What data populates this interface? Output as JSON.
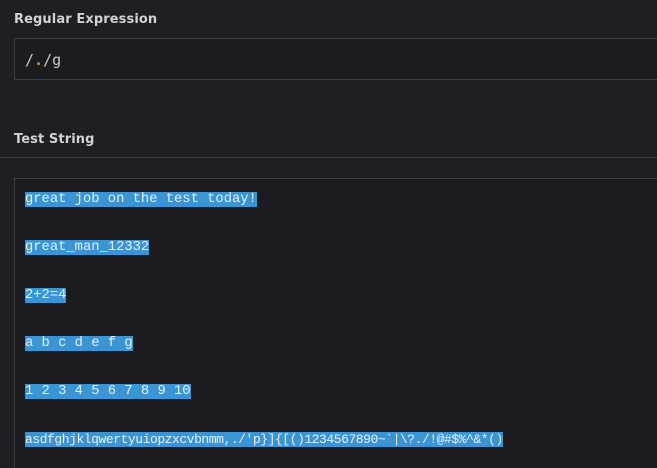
{
  "regex_section": {
    "label": "Regular Expression",
    "delimiter_open": "/",
    "pattern": ".",
    "delimiter_close": "/",
    "flags": "g"
  },
  "test_section": {
    "label": "Test String",
    "lines": [
      "great job on the test today!",
      "great_man_12332",
      "2+2=4",
      "a b c d e f g",
      "1 2 3 4 5 6 7 8 9 10",
      "asdfghjklqwertyuiopzxcvbnmm,./'p}]{[()1234567890~`|\\?./!@#$%^&*()"
    ]
  },
  "colors": {
    "background": "#1e1f22",
    "match_highlight": "#3b94d4",
    "regex_pattern_accent": "#e28a2a"
  }
}
